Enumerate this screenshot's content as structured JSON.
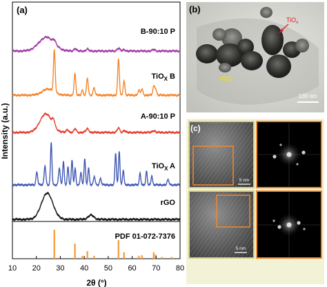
{
  "chart_data": {
    "type": "line",
    "panel_label": "(a)",
    "xlabel": "2θ (°)",
    "ylabel": "Intensity (a.u.)",
    "xlim": [
      10,
      80
    ],
    "xticks": [
      "10",
      "20",
      "30",
      "40",
      "50",
      "60",
      "70",
      "80"
    ],
    "series": [
      {
        "name": "B-90:10 P",
        "color": "#a23aa8",
        "peaks": [
          [
            24.2,
            1.0,
            3.2
          ],
          [
            27.5,
            0.25,
            0.6
          ],
          [
            36.2,
            0.18,
            0.5
          ],
          [
            41.3,
            0.15,
            0.5
          ],
          [
            54.3,
            0.2,
            0.6
          ],
          [
            56.7,
            0.1,
            0.5
          ],
          [
            69.0,
            0.1,
            0.6
          ]
        ],
        "scale": 20
      },
      {
        "name": "TiOx B",
        "color": "#f5852a",
        "peaks": [
          [
            25.0,
            0.15,
            2.5
          ],
          [
            27.5,
            1.0,
            0.35
          ],
          [
            36.1,
            0.52,
            0.35
          ],
          [
            39.2,
            0.12,
            0.35
          ],
          [
            41.3,
            0.42,
            0.35
          ],
          [
            44.1,
            0.18,
            0.4
          ],
          [
            54.3,
            0.88,
            0.35
          ],
          [
            56.6,
            0.35,
            0.35
          ],
          [
            62.8,
            0.12,
            0.4
          ],
          [
            64.1,
            0.15,
            0.4
          ],
          [
            69.0,
            0.2,
            0.4
          ],
          [
            69.8,
            0.14,
            0.4
          ]
        ],
        "scale": 60
      },
      {
        "name": "A-90:10 P",
        "color": "#e6402f",
        "peaks": [
          [
            24.0,
            1.0,
            2.5
          ],
          [
            27.2,
            0.3,
            0.5
          ],
          [
            33.0,
            0.15,
            0.5
          ],
          [
            36.2,
            0.2,
            0.5
          ],
          [
            41.3,
            0.2,
            0.6
          ],
          [
            54.3,
            0.25,
            0.5
          ],
          [
            56.7,
            0.1,
            0.5
          ],
          [
            69.0,
            0.1,
            0.6
          ]
        ],
        "scale": 27
      },
      {
        "name": "TiOx A",
        "color": "#3f57b4",
        "peaks": [
          [
            20.2,
            0.3,
            0.35
          ],
          [
            23.6,
            0.45,
            0.35
          ],
          [
            26.2,
            1.0,
            0.3
          ],
          [
            29.6,
            0.4,
            0.35
          ],
          [
            31.3,
            0.55,
            0.3
          ],
          [
            33.2,
            0.42,
            0.3
          ],
          [
            34.9,
            0.58,
            0.3
          ],
          [
            36.2,
            0.38,
            0.3
          ],
          [
            38.6,
            0.3,
            0.3
          ],
          [
            40.2,
            0.62,
            0.3
          ],
          [
            41.8,
            0.4,
            0.3
          ],
          [
            44.2,
            0.2,
            0.35
          ],
          [
            46.8,
            0.15,
            0.35
          ],
          [
            53.1,
            0.75,
            0.3
          ],
          [
            54.6,
            0.8,
            0.3
          ],
          [
            56.3,
            0.35,
            0.3
          ],
          [
            63.3,
            0.28,
            0.3
          ],
          [
            66.0,
            0.32,
            0.3
          ],
          [
            68.2,
            0.22,
            0.3
          ],
          [
            75.0,
            0.12,
            0.4
          ]
        ],
        "scale": 62
      },
      {
        "name": "rGO",
        "color": "#111111",
        "peaks": [
          [
            24.5,
            1.0,
            2.4
          ],
          [
            42.8,
            0.16,
            1.2
          ]
        ],
        "scale": 38
      }
    ],
    "reference": {
      "name": "PDF 01-072-7376",
      "color": "#f5a040",
      "positions": [
        27.5,
        36.1,
        39.2,
        41.3,
        44.1,
        54.3,
        56.6,
        62.8,
        64.1,
        69.0,
        69.8,
        72.4,
        76.5
      ],
      "intensities": [
        1.0,
        0.52,
        0.1,
        0.26,
        0.1,
        0.64,
        0.22,
        0.1,
        0.12,
        0.22,
        0.14,
        0.06,
        0.06
      ]
    }
  },
  "tem_panel": {
    "label": "(b)",
    "annotation": "TiOx",
    "region_label": "rGO",
    "scale_bar": "100 nm"
  },
  "fft_panel": {
    "label": "(c)",
    "scale_bar_top": "5 nm",
    "scale_bar_bottom": "5 nm"
  }
}
